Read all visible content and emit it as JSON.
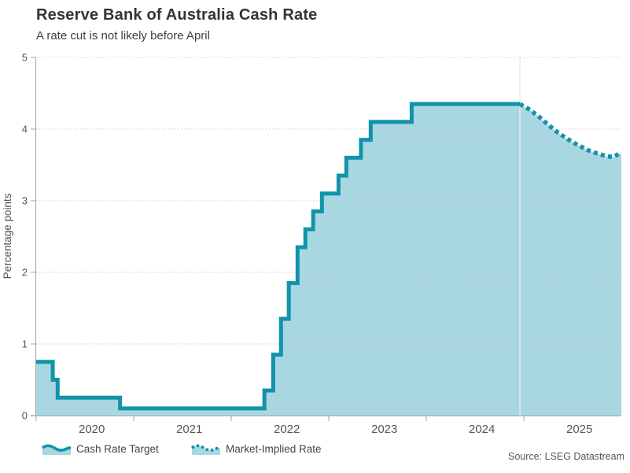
{
  "header": {
    "title": "Reserve Bank of Australia Cash Rate",
    "subtitle": "A rate cut is not likely before April"
  },
  "source": "Source: LSEG Datastream",
  "colors": {
    "series_line": "#1193aa",
    "series_fill": "#a8d7e1",
    "grid": "#c9c9c9",
    "axis": "#a6a6a6",
    "tick_text": "#555555",
    "divider": "#ebebeb"
  },
  "chart_data": {
    "type": "area",
    "title": "Reserve Bank of Australia Cash Rate",
    "subtitle": "A rate cut is not likely before April",
    "xlabel": "",
    "ylabel": "Percentage points",
    "xlim": [
      2020,
      2026
    ],
    "ylim": [
      0,
      5
    ],
    "x_ticks": [
      2020,
      2021,
      2022,
      2023,
      2024,
      2025
    ],
    "y_ticks": [
      0,
      1,
      2,
      3,
      4,
      5
    ],
    "grid": "horizontal-dotted",
    "legend_position": "bottom-left",
    "forecast_divider_x": 2024.96,
    "series": [
      {
        "name": "Cash Rate Target",
        "style": "solid-step",
        "end_t": 2024.96,
        "points": [
          [
            2020.0,
            0.75
          ],
          [
            2020.17,
            0.5
          ],
          [
            2020.22,
            0.25
          ],
          [
            2020.86,
            0.1
          ],
          [
            2022.34,
            0.35
          ],
          [
            2022.43,
            0.85
          ],
          [
            2022.51,
            1.35
          ],
          [
            2022.59,
            1.85
          ],
          [
            2022.68,
            2.35
          ],
          [
            2022.76,
            2.6
          ],
          [
            2022.84,
            2.85
          ],
          [
            2022.93,
            3.1
          ],
          [
            2023.1,
            3.35
          ],
          [
            2023.18,
            3.6
          ],
          [
            2023.33,
            3.85
          ],
          [
            2023.43,
            4.1
          ],
          [
            2023.85,
            4.35
          ]
        ]
      },
      {
        "name": "Market-Implied Rate",
        "style": "dotted-line",
        "points": [
          [
            2024.96,
            4.35
          ],
          [
            2025.05,
            4.28
          ],
          [
            2025.15,
            4.18
          ],
          [
            2025.25,
            4.06
          ],
          [
            2025.35,
            3.95
          ],
          [
            2025.45,
            3.86
          ],
          [
            2025.55,
            3.78
          ],
          [
            2025.65,
            3.71
          ],
          [
            2025.75,
            3.66
          ],
          [
            2025.85,
            3.62
          ],
          [
            2025.92,
            3.61
          ],
          [
            2025.98,
            3.66
          ]
        ]
      }
    ]
  }
}
